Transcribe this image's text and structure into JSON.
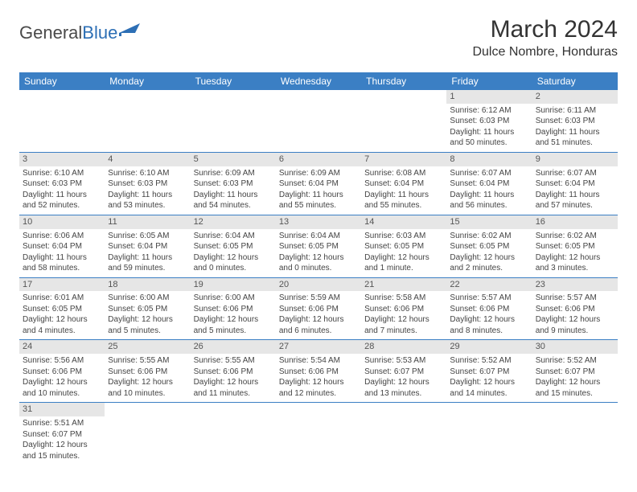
{
  "brand": {
    "name_part1": "General",
    "name_part2": "Blue"
  },
  "title": "March 2024",
  "location": "Dulce Nombre, Honduras",
  "colors": {
    "header_bg": "#3b7fc4",
    "header_text": "#ffffff",
    "daynum_bg": "#e6e6e6",
    "row_border": "#3b7fc4",
    "body_text": "#444444",
    "page_bg": "#ffffff"
  },
  "day_headers": [
    "Sunday",
    "Monday",
    "Tuesday",
    "Wednesday",
    "Thursday",
    "Friday",
    "Saturday"
  ],
  "weeks": [
    [
      null,
      null,
      null,
      null,
      null,
      {
        "n": "1",
        "sunrise": "Sunrise: 6:12 AM",
        "sunset": "Sunset: 6:03 PM",
        "daylight": "Daylight: 11 hours and 50 minutes."
      },
      {
        "n": "2",
        "sunrise": "Sunrise: 6:11 AM",
        "sunset": "Sunset: 6:03 PM",
        "daylight": "Daylight: 11 hours and 51 minutes."
      }
    ],
    [
      {
        "n": "3",
        "sunrise": "Sunrise: 6:10 AM",
        "sunset": "Sunset: 6:03 PM",
        "daylight": "Daylight: 11 hours and 52 minutes."
      },
      {
        "n": "4",
        "sunrise": "Sunrise: 6:10 AM",
        "sunset": "Sunset: 6:03 PM",
        "daylight": "Daylight: 11 hours and 53 minutes."
      },
      {
        "n": "5",
        "sunrise": "Sunrise: 6:09 AM",
        "sunset": "Sunset: 6:03 PM",
        "daylight": "Daylight: 11 hours and 54 minutes."
      },
      {
        "n": "6",
        "sunrise": "Sunrise: 6:09 AM",
        "sunset": "Sunset: 6:04 PM",
        "daylight": "Daylight: 11 hours and 55 minutes."
      },
      {
        "n": "7",
        "sunrise": "Sunrise: 6:08 AM",
        "sunset": "Sunset: 6:04 PM",
        "daylight": "Daylight: 11 hours and 55 minutes."
      },
      {
        "n": "8",
        "sunrise": "Sunrise: 6:07 AM",
        "sunset": "Sunset: 6:04 PM",
        "daylight": "Daylight: 11 hours and 56 minutes."
      },
      {
        "n": "9",
        "sunrise": "Sunrise: 6:07 AM",
        "sunset": "Sunset: 6:04 PM",
        "daylight": "Daylight: 11 hours and 57 minutes."
      }
    ],
    [
      {
        "n": "10",
        "sunrise": "Sunrise: 6:06 AM",
        "sunset": "Sunset: 6:04 PM",
        "daylight": "Daylight: 11 hours and 58 minutes."
      },
      {
        "n": "11",
        "sunrise": "Sunrise: 6:05 AM",
        "sunset": "Sunset: 6:04 PM",
        "daylight": "Daylight: 11 hours and 59 minutes."
      },
      {
        "n": "12",
        "sunrise": "Sunrise: 6:04 AM",
        "sunset": "Sunset: 6:05 PM",
        "daylight": "Daylight: 12 hours and 0 minutes."
      },
      {
        "n": "13",
        "sunrise": "Sunrise: 6:04 AM",
        "sunset": "Sunset: 6:05 PM",
        "daylight": "Daylight: 12 hours and 0 minutes."
      },
      {
        "n": "14",
        "sunrise": "Sunrise: 6:03 AM",
        "sunset": "Sunset: 6:05 PM",
        "daylight": "Daylight: 12 hours and 1 minute."
      },
      {
        "n": "15",
        "sunrise": "Sunrise: 6:02 AM",
        "sunset": "Sunset: 6:05 PM",
        "daylight": "Daylight: 12 hours and 2 minutes."
      },
      {
        "n": "16",
        "sunrise": "Sunrise: 6:02 AM",
        "sunset": "Sunset: 6:05 PM",
        "daylight": "Daylight: 12 hours and 3 minutes."
      }
    ],
    [
      {
        "n": "17",
        "sunrise": "Sunrise: 6:01 AM",
        "sunset": "Sunset: 6:05 PM",
        "daylight": "Daylight: 12 hours and 4 minutes."
      },
      {
        "n": "18",
        "sunrise": "Sunrise: 6:00 AM",
        "sunset": "Sunset: 6:05 PM",
        "daylight": "Daylight: 12 hours and 5 minutes."
      },
      {
        "n": "19",
        "sunrise": "Sunrise: 6:00 AM",
        "sunset": "Sunset: 6:06 PM",
        "daylight": "Daylight: 12 hours and 5 minutes."
      },
      {
        "n": "20",
        "sunrise": "Sunrise: 5:59 AM",
        "sunset": "Sunset: 6:06 PM",
        "daylight": "Daylight: 12 hours and 6 minutes."
      },
      {
        "n": "21",
        "sunrise": "Sunrise: 5:58 AM",
        "sunset": "Sunset: 6:06 PM",
        "daylight": "Daylight: 12 hours and 7 minutes."
      },
      {
        "n": "22",
        "sunrise": "Sunrise: 5:57 AM",
        "sunset": "Sunset: 6:06 PM",
        "daylight": "Daylight: 12 hours and 8 minutes."
      },
      {
        "n": "23",
        "sunrise": "Sunrise: 5:57 AM",
        "sunset": "Sunset: 6:06 PM",
        "daylight": "Daylight: 12 hours and 9 minutes."
      }
    ],
    [
      {
        "n": "24",
        "sunrise": "Sunrise: 5:56 AM",
        "sunset": "Sunset: 6:06 PM",
        "daylight": "Daylight: 12 hours and 10 minutes."
      },
      {
        "n": "25",
        "sunrise": "Sunrise: 5:55 AM",
        "sunset": "Sunset: 6:06 PM",
        "daylight": "Daylight: 12 hours and 10 minutes."
      },
      {
        "n": "26",
        "sunrise": "Sunrise: 5:55 AM",
        "sunset": "Sunset: 6:06 PM",
        "daylight": "Daylight: 12 hours and 11 minutes."
      },
      {
        "n": "27",
        "sunrise": "Sunrise: 5:54 AM",
        "sunset": "Sunset: 6:06 PM",
        "daylight": "Daylight: 12 hours and 12 minutes."
      },
      {
        "n": "28",
        "sunrise": "Sunrise: 5:53 AM",
        "sunset": "Sunset: 6:07 PM",
        "daylight": "Daylight: 12 hours and 13 minutes."
      },
      {
        "n": "29",
        "sunrise": "Sunrise: 5:52 AM",
        "sunset": "Sunset: 6:07 PM",
        "daylight": "Daylight: 12 hours and 14 minutes."
      },
      {
        "n": "30",
        "sunrise": "Sunrise: 5:52 AM",
        "sunset": "Sunset: 6:07 PM",
        "daylight": "Daylight: 12 hours and 15 minutes."
      }
    ],
    [
      {
        "n": "31",
        "sunrise": "Sunrise: 5:51 AM",
        "sunset": "Sunset: 6:07 PM",
        "daylight": "Daylight: 12 hours and 15 minutes."
      },
      null,
      null,
      null,
      null,
      null,
      null
    ]
  ]
}
